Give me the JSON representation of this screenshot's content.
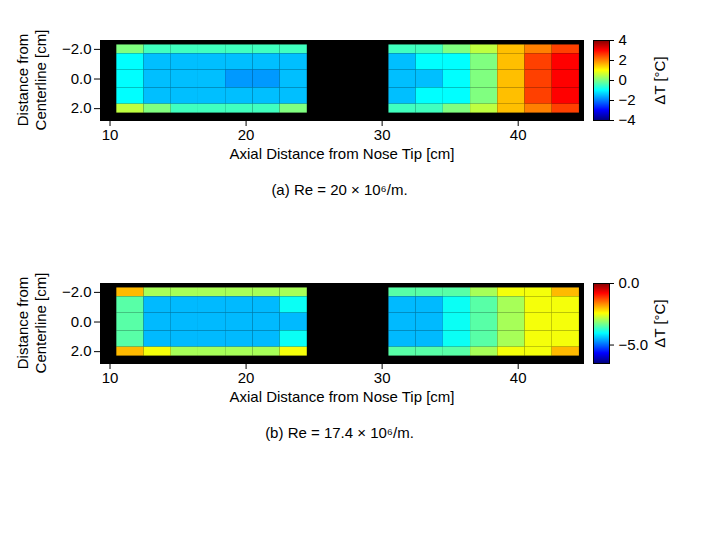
{
  "chart_data": [
    {
      "type": "heatmap",
      "caption": "(a) Re = 20 × 10⁶/m.",
      "x_label": "Axial Distance from Nose Tip [cm]",
      "y_label": "Distance from Centerline [cm]",
      "xlim": [
        9.3,
        44.8
      ],
      "xticks": [
        10,
        20,
        30,
        40
      ],
      "ylim": [
        -2.6,
        2.8
      ],
      "yticks": [
        -2,
        0,
        2
      ],
      "x_edges": [
        10.5,
        12.5,
        14.5,
        16.5,
        18.5,
        20.5,
        22.5,
        24.5,
        26.5,
        28.5,
        30.5,
        32.5,
        34.5,
        36.5,
        38.5,
        40.5,
        42.5,
        44.5
      ],
      "y_edges": [
        -2.3,
        -1.7,
        -0.6,
        0.6,
        1.7,
        2.3
      ],
      "cells": [
        [
          0,
          -0.5,
          -0.5,
          -0.5,
          -0.5,
          -0.5,
          -0.5,
          null,
          null,
          null,
          -0.5,
          -0.5,
          0,
          0.5,
          1.5,
          2,
          2.5
        ],
        [
          -1,
          -1.5,
          -1.5,
          -1.5,
          -1.5,
          -1.5,
          -1.5,
          null,
          null,
          null,
          -1.5,
          -1,
          -1,
          0,
          1.5,
          2.5,
          3
        ],
        [
          -1,
          -1.5,
          -1.5,
          -1.5,
          -1.8,
          -1.8,
          -1.5,
          null,
          null,
          null,
          -1.5,
          -1.5,
          -1,
          0,
          1.5,
          2.5,
          3
        ],
        [
          -1,
          -1.5,
          -1.5,
          -1.5,
          -1.5,
          -1.5,
          -1.5,
          null,
          null,
          null,
          -1.5,
          -1,
          -1,
          0,
          1.5,
          2.5,
          3
        ],
        [
          0.5,
          0,
          -0.5,
          -0.5,
          -0.5,
          -0.5,
          0,
          null,
          null,
          null,
          -0.5,
          -0.5,
          0,
          0.5,
          1.5,
          2,
          2.5
        ]
      ],
      "colorbar": {
        "label": "ΔT [°C]",
        "range": [
          -4,
          4
        ],
        "ticks": [
          -4,
          -2,
          0,
          2,
          4
        ]
      }
    },
    {
      "type": "heatmap",
      "caption": "(b) Re = 17.4 × 10⁶/m.",
      "x_label": "Axial Distance from Nose Tip [cm]",
      "y_label": "Distance from Centerline [cm]",
      "xlim": [
        9.3,
        44.8
      ],
      "xticks": [
        10,
        20,
        30,
        40
      ],
      "ylim": [
        -2.6,
        2.8
      ],
      "yticks": [
        -2,
        0,
        2
      ],
      "x_edges": [
        10.5,
        12.5,
        14.5,
        16.5,
        18.5,
        20.5,
        22.5,
        24.5,
        26.5,
        28.5,
        30.5,
        32.5,
        34.5,
        36.5,
        38.5,
        40.5,
        42.5,
        44.5
      ],
      "y_edges": [
        -2.3,
        -1.7,
        -0.6,
        0.6,
        1.7,
        2.3
      ],
      "cells": [
        [
          -2,
          -3,
          -3,
          -3,
          -3,
          -3,
          -3,
          null,
          null,
          null,
          -3.5,
          -3.5,
          -3.5,
          -3,
          -2.5,
          -2.5,
          -2
        ],
        [
          -3.5,
          -4.5,
          -4.5,
          -4.5,
          -4.5,
          -4.5,
          -4,
          null,
          null,
          null,
          -4.5,
          -4.5,
          -4,
          -3.5,
          -3,
          -2.5,
          -2.5
        ],
        [
          -3.5,
          -4.5,
          -4.5,
          -4.5,
          -4.5,
          -4.5,
          -4.5,
          null,
          null,
          null,
          -4.5,
          -4.5,
          -4,
          -3.5,
          -3,
          -2.5,
          -2.5
        ],
        [
          -3.5,
          -4.5,
          -4.5,
          -4.5,
          -4.5,
          -4.5,
          -4,
          null,
          null,
          null,
          -4.5,
          -4.5,
          -4,
          -3.5,
          -3,
          -2.5,
          -2.5
        ],
        [
          -2,
          -2.5,
          -3,
          -3,
          -3,
          -3,
          -2.5,
          null,
          null,
          null,
          -3.5,
          -3.5,
          -3.5,
          -3,
          -2.5,
          -2.5,
          -2
        ]
      ],
      "colorbar": {
        "label": "ΔT [°C]",
        "range": [
          -6.5,
          0
        ],
        "ticks": [
          -5,
          0
        ]
      }
    }
  ]
}
